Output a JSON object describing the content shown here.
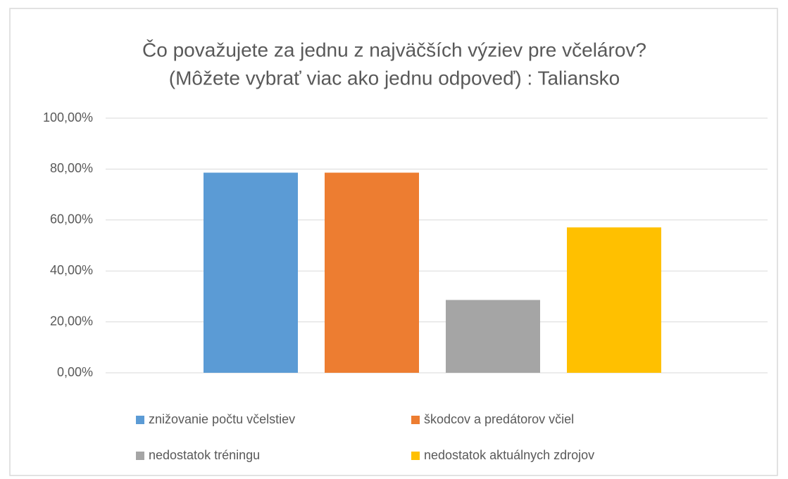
{
  "chart_data": {
    "type": "bar",
    "title": [
      "Čo považujete za jednu z najväčších výziev pre včelárov?",
      "(Môžete vybrať viac ako jednu odpoveď) : Taliansko"
    ],
    "categories": [
      null
    ],
    "series": [
      {
        "name": "znižovanie počtu včelstiev",
        "color": "#5b9bd5",
        "values": [
          78.6
        ]
      },
      {
        "name": "škodcov a predátorov včiel",
        "color": "#ed7d31",
        "values": [
          78.6
        ]
      },
      {
        "name": "nedostatok tréningu",
        "color": "#a5a5a5",
        "values": [
          28.6
        ]
      },
      {
        "name": "nedostatok aktuálnych zdrojov",
        "color": "#ffc000",
        "values": [
          57.1
        ]
      }
    ],
    "ylim": [
      0,
      100
    ],
    "yticks": [
      {
        "value": 0,
        "label": "0,00%"
      },
      {
        "value": 20,
        "label": "20,00%"
      },
      {
        "value": 40,
        "label": "40,00%"
      },
      {
        "value": 60,
        "label": "60,00%"
      },
      {
        "value": 80,
        "label": "80,00%"
      },
      {
        "value": 100,
        "label": "100,00%"
      }
    ],
    "grid": true,
    "legend": "bottom"
  }
}
